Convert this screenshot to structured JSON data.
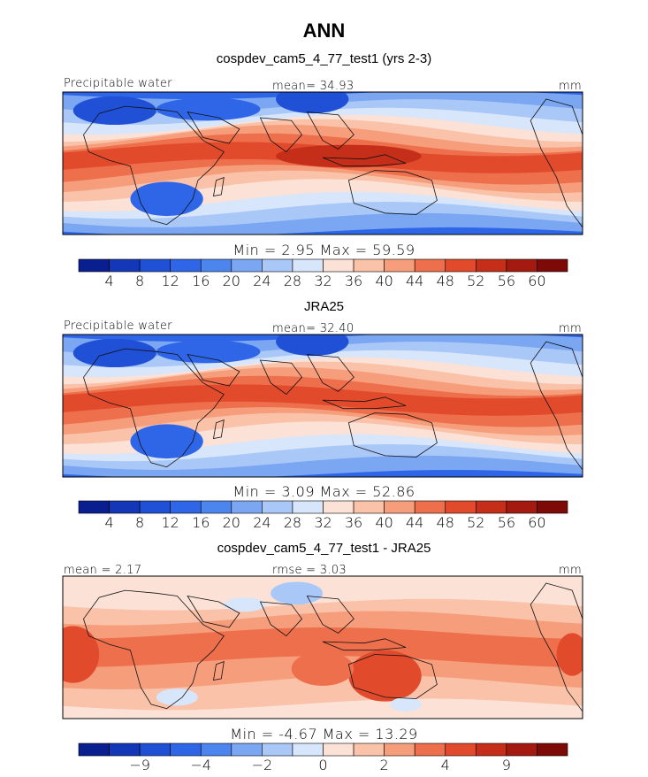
{
  "title": "ANN",
  "palette": {
    "abs": [
      "#0a1f8f",
      "#1437b8",
      "#1f50d6",
      "#2f66e8",
      "#4d85ee",
      "#7aa6f2",
      "#aac8f7",
      "#d8e6fb",
      "#fbe1d6",
      "#f9c2a9",
      "#f69d7c",
      "#ee6f4c",
      "#e24a2c",
      "#c52f1a",
      "#a41a10",
      "#7e0a08"
    ],
    "diff": [
      "#0a1f8f",
      "#1437b8",
      "#1f50d6",
      "#2f66e8",
      "#4d85ee",
      "#7aa6f2",
      "#aac8f7",
      "#d8e6fb",
      "#fbe1d6",
      "#f9c2a9",
      "#f69d7c",
      "#ee6f4c",
      "#e24a2c",
      "#c52f1a",
      "#a41a10",
      "#7e0a08"
    ]
  },
  "panels": [
    {
      "title": "cospdev_cam5_4_77_test1 (yrs 2-3)",
      "left_label": "Precipitable water",
      "center_label": "mean=   34.93",
      "right_label": "mm",
      "minmax": "Min =    2.95  Max =   59.59",
      "colorbar_ticks": [
        "4",
        "8",
        "12",
        "16",
        "20",
        "24",
        "28",
        "32",
        "36",
        "40",
        "44",
        "48",
        "52",
        "56",
        "60"
      ],
      "chart_data": {
        "type": "heatmap",
        "variable": "Precipitable water",
        "units": "mm",
        "mean": 34.93,
        "min": 2.95,
        "max": 59.59,
        "contour_levels": [
          4,
          8,
          12,
          16,
          20,
          24,
          28,
          32,
          36,
          40,
          44,
          48,
          52,
          56,
          60
        ]
      }
    },
    {
      "title": "JRA25",
      "left_label": "Precipitable water",
      "center_label": "mean=   32.40",
      "right_label": "mm",
      "minmax": "Min =    3.09  Max =   52.86",
      "colorbar_ticks": [
        "4",
        "8",
        "12",
        "16",
        "20",
        "24",
        "28",
        "32",
        "36",
        "40",
        "44",
        "48",
        "52",
        "56",
        "60"
      ],
      "chart_data": {
        "type": "heatmap",
        "variable": "Precipitable water",
        "units": "mm",
        "mean": 32.4,
        "min": 3.09,
        "max": 52.86,
        "contour_levels": [
          4,
          8,
          12,
          16,
          20,
          24,
          28,
          32,
          36,
          40,
          44,
          48,
          52,
          56,
          60
        ]
      }
    },
    {
      "title": "cospdev_cam5_4_77_test1 - JRA25",
      "left_label": "mean =    2.17",
      "center_label": "rmse =    3.03",
      "right_label": "mm",
      "minmax": "Min =   -4.67  Max =   13.29",
      "colorbar_ticks": [
        "",
        "−9",
        "",
        "−4",
        "",
        "−2",
        "",
        "0",
        "",
        "2",
        "",
        "4",
        "",
        "9",
        ""
      ],
      "chart_data": {
        "type": "heatmap",
        "variable": "difference",
        "units": "mm",
        "mean": 2.17,
        "rmse": 3.03,
        "min": -4.67,
        "max": 13.29,
        "contour_levels": [
          -9,
          -4,
          -2,
          0,
          2,
          4,
          9
        ]
      }
    }
  ]
}
